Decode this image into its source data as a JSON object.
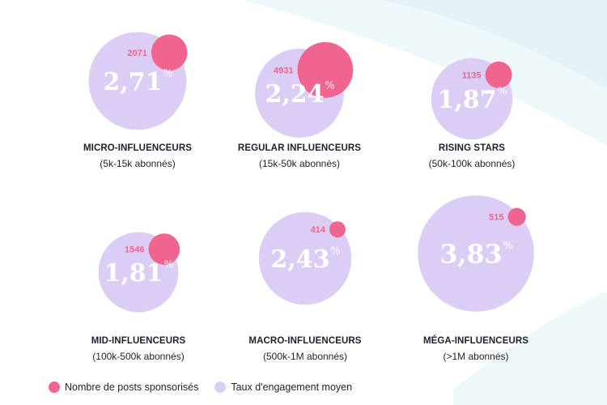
{
  "chart_data": {
    "type": "bubble",
    "title": "",
    "series": [
      {
        "name": "Nombre de posts sponsorisés",
        "color": "#f0658f"
      },
      {
        "name": "Taux d'engagement moyen",
        "color": "#dccdf5"
      }
    ],
    "categories": [
      {
        "name": "MICRO-INFLUENCEURS",
        "range": "(5k-15k abonnés)",
        "posts": 2071,
        "posts_label": "2071",
        "engagement": 2.71,
        "engagement_label": "2,71",
        "pct_symbol": "%"
      },
      {
        "name": "REGULAR INFLUENCEURS",
        "range": "(15k-50k abonnés)",
        "posts": 4931,
        "posts_label": "4931",
        "engagement": 2.24,
        "engagement_label": "2,24",
        "pct_symbol": "%"
      },
      {
        "name": "RISING STARS",
        "range": "(50k-100k abonnés)",
        "posts": 1135,
        "posts_label": "1135",
        "engagement": 1.87,
        "engagement_label": "1,87",
        "pct_symbol": "%"
      },
      {
        "name": "MID-INFLUENCEURS",
        "range": "(100k-500k abonnés)",
        "posts": 1546,
        "posts_label": "1546",
        "engagement": 1.81,
        "engagement_label": "1,81",
        "pct_symbol": "%"
      },
      {
        "name": "MACRO-INFLUENCEURS",
        "range": "(500k-1M abonnés)",
        "posts": 414,
        "posts_label": "414",
        "engagement": 2.43,
        "engagement_label": "2,43",
        "pct_symbol": "%"
      },
      {
        "name": "MÉGA-INFLUENCEURS",
        "range": "(>1M abonnés)",
        "posts": 515,
        "posts_label": "515",
        "engagement": 3.83,
        "engagement_label": "3,83",
        "pct_symbol": "%"
      }
    ]
  },
  "legend": {
    "posts_label": "Nombre de posts sponsorisés",
    "engagement_label": "Taux d'engagement moyen"
  }
}
